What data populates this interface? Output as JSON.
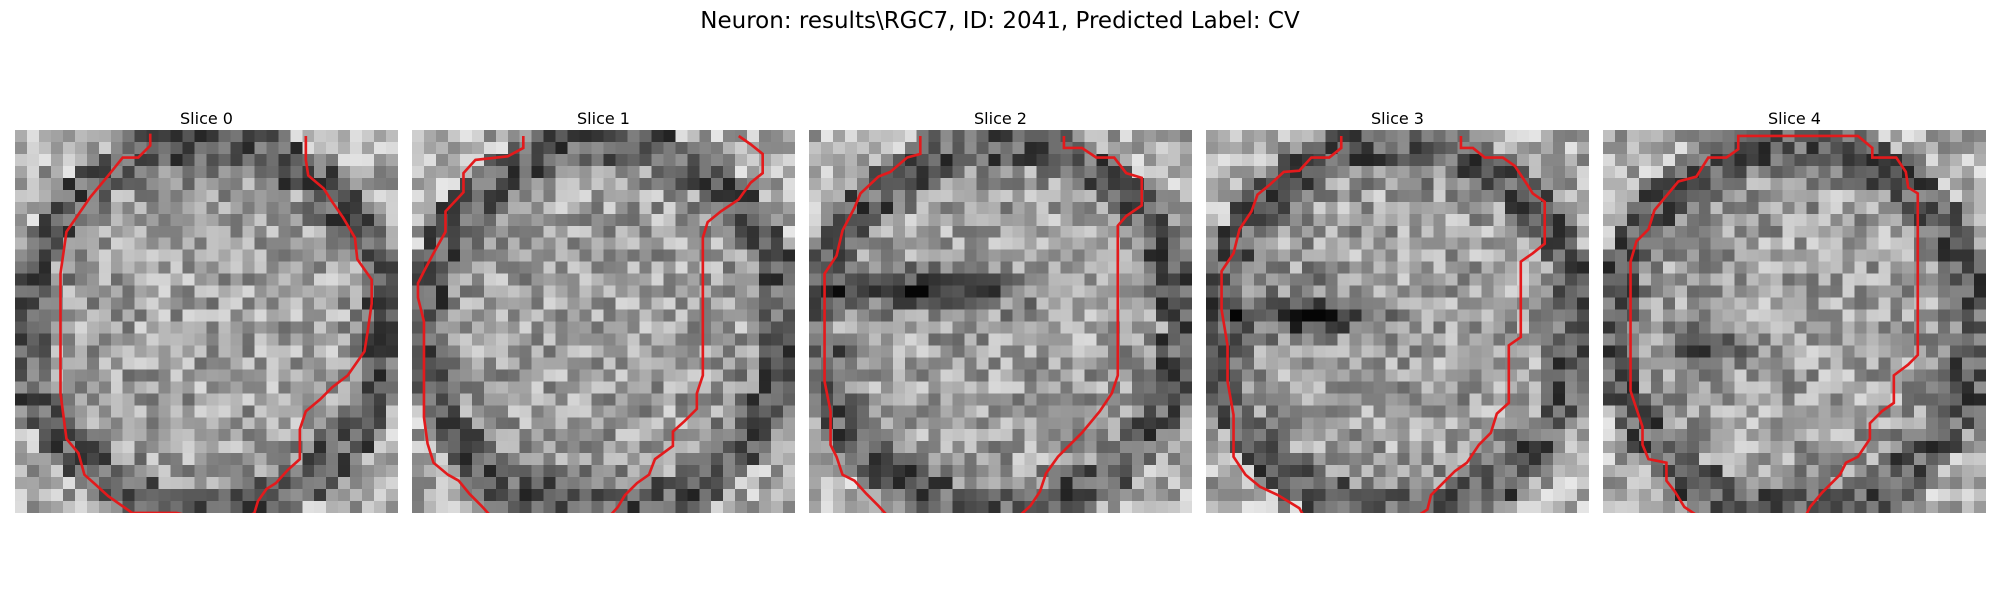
{
  "figure": {
    "title": "Neuron: results\\RGC7, ID: 2041, Predicted Label: CV"
  },
  "slices": [
    {
      "label": "Slice 0",
      "icon": "grayscale-microscopy-image"
    },
    {
      "label": "Slice 1",
      "icon": "grayscale-microscopy-image"
    },
    {
      "label": "Slice 2",
      "icon": "grayscale-microscopy-image"
    },
    {
      "label": "Slice 3",
      "icon": "grayscale-microscopy-image"
    },
    {
      "label": "Slice 4",
      "icon": "grayscale-microscopy-image"
    }
  ],
  "colors": {
    "contour": "#e31a1c",
    "background": "#ffffff"
  }
}
